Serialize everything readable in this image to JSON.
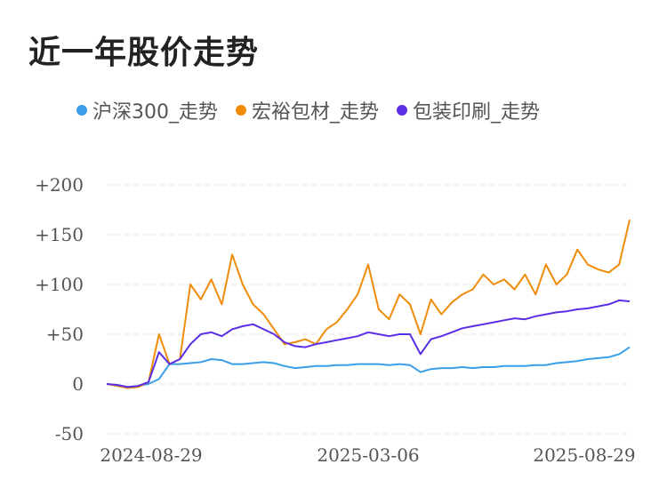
{
  "title": "近一年股价走势",
  "chart_data": {
    "type": "line",
    "title": "近一年股价走势",
    "xlabel": "",
    "ylabel": "",
    "x_tick_labels": [
      "2024-08-29",
      "2025-03-06",
      "2025-08-29"
    ],
    "y_ticks": [
      "+200",
      "+150",
      "+100",
      "+50",
      "0",
      "-50"
    ],
    "y_tick_values": [
      200,
      150,
      100,
      50,
      0,
      -50
    ],
    "ylim": [
      -50,
      200
    ],
    "grid": true,
    "legend_position": "top",
    "x_index_points": [
      0,
      2,
      4,
      6,
      8,
      10,
      12,
      14,
      16,
      18,
      20,
      22,
      24,
      26,
      28,
      30,
      32,
      34,
      36,
      38,
      40,
      42,
      44,
      46,
      48,
      50,
      52,
      54,
      56,
      58,
      60,
      62,
      64,
      66,
      68,
      70,
      72,
      74,
      76,
      78,
      80,
      82,
      84,
      86,
      88,
      90,
      92,
      94,
      96,
      98,
      100
    ],
    "series": [
      {
        "name": "沪深300_走势",
        "color": "#3a9ee8",
        "values": [
          0,
          -1,
          -3,
          -2,
          0,
          5,
          20,
          20,
          21,
          22,
          25,
          24,
          20,
          20,
          21,
          22,
          21,
          18,
          16,
          17,
          18,
          18,
          19,
          19,
          20,
          20,
          20,
          19,
          20,
          19,
          12,
          15,
          16,
          16,
          17,
          16,
          17,
          17,
          18,
          18,
          18,
          19,
          19,
          21,
          22,
          23,
          25,
          26,
          27,
          30,
          37
        ]
      },
      {
        "name": "宏裕包材_走势",
        "color": "#f08c0a",
        "values": [
          0,
          -2,
          -4,
          -3,
          2,
          50,
          20,
          25,
          100,
          85,
          105,
          80,
          130,
          100,
          80,
          70,
          55,
          40,
          42,
          45,
          40,
          55,
          62,
          75,
          90,
          120,
          75,
          65,
          90,
          80,
          50,
          85,
          70,
          82,
          90,
          95,
          110,
          100,
          105,
          95,
          110,
          90,
          120,
          100,
          110,
          135,
          120,
          115,
          112,
          120,
          165
        ]
      },
      {
        "name": "包装印刷_走势",
        "color": "#5a2ee6",
        "values": [
          0,
          -1,
          -3,
          -2,
          2,
          32,
          20,
          25,
          40,
          50,
          52,
          48,
          55,
          58,
          60,
          55,
          50,
          42,
          38,
          37,
          40,
          42,
          44,
          46,
          48,
          52,
          50,
          48,
          50,
          50,
          30,
          45,
          48,
          52,
          56,
          58,
          60,
          62,
          64,
          66,
          65,
          68,
          70,
          72,
          73,
          75,
          76,
          78,
          80,
          84,
          83
        ]
      }
    ]
  }
}
